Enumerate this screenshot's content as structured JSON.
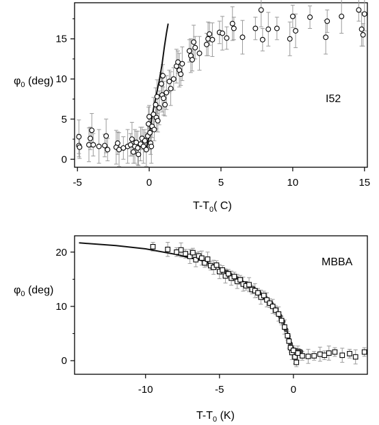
{
  "chart_data": [
    {
      "type": "scatter",
      "panel": "top",
      "xlabel": "T-T0( C)",
      "ylabel": "φ0 (deg)",
      "annotation": "I52",
      "xlim": [
        -5.2,
        15.2
      ],
      "ylim": [
        -1,
        19.5
      ],
      "xticks": [
        -5,
        0,
        5,
        10,
        15
      ],
      "yticks": [
        0,
        5,
        10,
        15
      ],
      "grid": false,
      "series": [
        {
          "marker": "open-circle",
          "errorbars": true,
          "points": [
            [
              -4.9,
              1.7
            ],
            [
              -4.9,
              2.8
            ],
            [
              -4.85,
              1.5
            ],
            [
              -4.2,
              1.8
            ],
            [
              -4.1,
              2.6
            ],
            [
              -4.0,
              3.6
            ],
            [
              -3.9,
              1.8
            ],
            [
              -3.5,
              1.6
            ],
            [
              -3.1,
              1.7
            ],
            [
              -3.0,
              2.9
            ],
            [
              -2.9,
              1.2
            ],
            [
              -2.3,
              1.5
            ],
            [
              -2.2,
              2.0
            ],
            [
              -2.1,
              1.2
            ],
            [
              -1.8,
              1.4
            ],
            [
              -1.5,
              1.6
            ],
            [
              -1.3,
              1.8
            ],
            [
              -1.2,
              2.5
            ],
            [
              -1.1,
              0.9
            ],
            [
              -1.0,
              1.6
            ],
            [
              -0.9,
              2.1
            ],
            [
              -0.8,
              1.4
            ],
            [
              -0.75,
              0.6
            ],
            [
              -0.6,
              1.9
            ],
            [
              -0.5,
              2.6
            ],
            [
              -0.4,
              1.6
            ],
            [
              -0.3,
              2.3
            ],
            [
              -0.2,
              1.2
            ],
            [
              -0.1,
              2.9
            ],
            [
              -0.05,
              4.4
            ],
            [
              0.0,
              5.3
            ],
            [
              0.05,
              3.3
            ],
            [
              0.1,
              2.0
            ],
            [
              0.15,
              1.6
            ],
            [
              0.2,
              4.1
            ],
            [
              0.3,
              5.6
            ],
            [
              0.35,
              3.7
            ],
            [
              0.45,
              6.8
            ],
            [
              0.5,
              5.2
            ],
            [
              0.55,
              7.8
            ],
            [
              0.6,
              4.8
            ],
            [
              0.7,
              6.4
            ],
            [
              0.85,
              9.4
            ],
            [
              0.9,
              8.0
            ],
            [
              0.95,
              10.4
            ],
            [
              1.0,
              7.6
            ],
            [
              1.1,
              6.8
            ],
            [
              1.2,
              8.3
            ],
            [
              1.4,
              9.7
            ],
            [
              1.5,
              8.8
            ],
            [
              1.7,
              10.0
            ],
            [
              1.9,
              11.6
            ],
            [
              2.0,
              12.1
            ],
            [
              2.1,
              11.1
            ],
            [
              2.2,
              10.6
            ],
            [
              2.3,
              11.9
            ],
            [
              2.8,
              13.5
            ],
            [
              2.9,
              12.9
            ],
            [
              3.0,
              12.4
            ],
            [
              3.1,
              14.6
            ],
            [
              3.2,
              13.9
            ],
            [
              3.5,
              13.2
            ],
            [
              4.0,
              14.3
            ],
            [
              4.1,
              15.0
            ],
            [
              4.2,
              15.6
            ],
            [
              4.4,
              14.9
            ],
            [
              4.9,
              15.8
            ],
            [
              5.1,
              15.7
            ],
            [
              5.4,
              15.1
            ],
            [
              5.8,
              16.9
            ],
            [
              5.9,
              16.3
            ],
            [
              6.5,
              15.2
            ],
            [
              7.4,
              16.3
            ],
            [
              7.8,
              18.6
            ],
            [
              7.9,
              14.9
            ],
            [
              8.3,
              16.2
            ],
            [
              8.9,
              16.3
            ],
            [
              9.8,
              15.0
            ],
            [
              10.0,
              17.8
            ],
            [
              10.2,
              16.0
            ],
            [
              11.2,
              17.7
            ],
            [
              12.3,
              15.2
            ],
            [
              12.4,
              17.2
            ],
            [
              13.4,
              17.8
            ],
            [
              14.6,
              18.6
            ],
            [
              14.8,
              16.2
            ],
            [
              14.9,
              15.5
            ],
            [
              15.0,
              18.1
            ]
          ]
        },
        {
          "marker": "line",
          "points": [
            [
              -0.2,
              1.2
            ],
            [
              0.0,
              3.0
            ],
            [
              0.15,
              4.8
            ],
            [
              0.3,
              6.3
            ],
            [
              0.5,
              8.1
            ],
            [
              0.7,
              9.8
            ],
            [
              0.9,
              11.9
            ],
            [
              1.05,
              13.9
            ],
            [
              1.2,
              15.7
            ],
            [
              1.32,
              16.9
            ]
          ]
        }
      ]
    },
    {
      "type": "scatter",
      "panel": "bottom",
      "xlabel": "T-T0 (K)",
      "ylabel": "φ0 (deg)",
      "annotation": "MBBA",
      "xlim": [
        -14.8,
        5.0
      ],
      "ylim": [
        -2.5,
        23
      ],
      "xticks": [
        -10,
        -5,
        0
      ],
      "yticks": [
        0,
        10,
        20
      ],
      "grid": false,
      "series": [
        {
          "marker": "open-square",
          "errorbars": true,
          "points": [
            [
              -9.5,
              21.0
            ],
            [
              -8.5,
              20.5
            ],
            [
              -7.9,
              20.0
            ],
            [
              -7.6,
              20.4
            ],
            [
              -7.3,
              19.7
            ],
            [
              -7.0,
              19.2
            ],
            [
              -6.8,
              19.9
            ],
            [
              -6.6,
              18.6
            ],
            [
              -6.4,
              19.3
            ],
            [
              -6.2,
              18.9
            ],
            [
              -6.0,
              18.0
            ],
            [
              -5.8,
              18.7
            ],
            [
              -5.6,
              17.5
            ],
            [
              -5.4,
              17.2
            ],
            [
              -5.2,
              17.6
            ],
            [
              -5.0,
              16.4
            ],
            [
              -4.8,
              16.7
            ],
            [
              -4.6,
              15.6
            ],
            [
              -4.4,
              16.0
            ],
            [
              -4.2,
              15.2
            ],
            [
              -4.0,
              15.5
            ],
            [
              -3.8,
              14.6
            ],
            [
              -3.6,
              14.9
            ],
            [
              -3.4,
              14.1
            ],
            [
              -3.2,
              13.8
            ],
            [
              -3.0,
              14.0
            ],
            [
              -2.8,
              13.1
            ],
            [
              -2.6,
              12.9
            ],
            [
              -2.4,
              12.5
            ],
            [
              -2.2,
              11.7
            ],
            [
              -2.0,
              12.0
            ],
            [
              -1.8,
              11.2
            ],
            [
              -1.6,
              10.6
            ],
            [
              -1.4,
              10.0
            ],
            [
              -1.2,
              9.3
            ],
            [
              -1.0,
              8.6
            ],
            [
              -0.8,
              7.4
            ],
            [
              -0.6,
              6.2
            ],
            [
              -0.4,
              4.6
            ],
            [
              -0.3,
              3.6
            ],
            [
              -0.2,
              2.4
            ],
            [
              -0.1,
              1.5
            ],
            [
              0.0,
              1.9
            ],
            [
              0.1,
              0.7
            ],
            [
              0.2,
              -0.3
            ],
            [
              0.3,
              1.4
            ],
            [
              0.6,
              0.9
            ],
            [
              1.0,
              0.8
            ],
            [
              1.4,
              0.9
            ],
            [
              1.8,
              1.2
            ],
            [
              2.1,
              1.0
            ],
            [
              2.4,
              1.4
            ],
            [
              2.8,
              1.6
            ],
            [
              3.3,
              1.0
            ],
            [
              3.8,
              1.3
            ],
            [
              4.2,
              0.7
            ],
            [
              4.8,
              1.6
            ]
          ]
        },
        {
          "marker": "filled-circle",
          "errorbars": false,
          "points": [
            [
              -5.2,
              17.6
            ],
            [
              -4.5,
              16.3
            ],
            [
              -3.8,
              15.1
            ],
            [
              -3.2,
              14.2
            ],
            [
              -2.7,
              13.3
            ],
            [
              -2.3,
              12.4
            ],
            [
              -1.9,
              11.6
            ],
            [
              -1.5,
              10.5
            ],
            [
              -1.2,
              9.4
            ],
            [
              -0.9,
              8.2
            ],
            [
              -0.7,
              7.2
            ],
            [
              -0.5,
              5.7
            ],
            [
              -0.35,
              4.5
            ],
            [
              -0.2,
              3.1
            ],
            [
              -0.1,
              2.3
            ],
            [
              0.0,
              2.0
            ],
            [
              0.2,
              1.9
            ],
            [
              0.4,
              1.8
            ],
            [
              0.5,
              1.7
            ]
          ]
        },
        {
          "marker": "line",
          "points": [
            [
              -14.5,
              21.7
            ],
            [
              -12.0,
              21.2
            ],
            [
              -10.0,
              20.6
            ],
            [
              -8.0,
              19.6
            ],
            [
              -6.0,
              18.3
            ],
            [
              -4.5,
              16.5
            ],
            [
              -3.0,
              13.9
            ],
            [
              -2.0,
              11.8
            ],
            [
              -1.2,
              9.6
            ],
            [
              -0.6,
              6.6
            ],
            [
              -0.25,
              4.2
            ],
            [
              0.0,
              2.0
            ],
            [
              0.1,
              1.9
            ]
          ]
        }
      ]
    }
  ]
}
